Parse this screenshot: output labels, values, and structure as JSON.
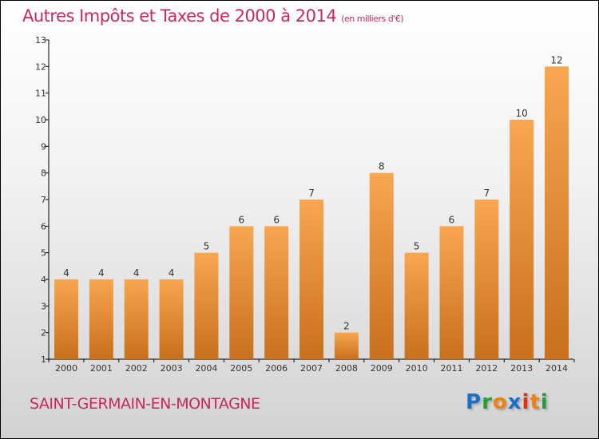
{
  "chart_data": {
    "type": "bar",
    "title": "Autres Impôts et Taxes de 2000 à 2014",
    "unit": "(en milliers d'€)",
    "categories": [
      "2000",
      "2001",
      "2002",
      "2003",
      "2004",
      "2005",
      "2006",
      "2007",
      "2008",
      "2009",
      "2010",
      "2011",
      "2012",
      "2013",
      "2014"
    ],
    "values": [
      4,
      4,
      4,
      4,
      5,
      6,
      6,
      7,
      2,
      8,
      5,
      6,
      7,
      10,
      12
    ],
    "yticks": [
      1,
      2,
      3,
      4,
      5,
      6,
      7,
      8,
      9,
      10,
      11,
      12,
      13
    ],
    "ylim": [
      1,
      13
    ],
    "xlabel": "",
    "ylabel": "",
    "bar_color": "#f0953c"
  },
  "commune": "SAINT-GERMAIN-EN-MONTAGNE",
  "logo": {
    "letters": [
      "P",
      "r",
      "o",
      "x",
      "i",
      "t",
      "i"
    ],
    "colors": [
      "#1a6fc8",
      "#2a9a3a",
      "#f08010",
      "#1a6fc8",
      "#e03010",
      "#f08010",
      "#2a9a3a"
    ]
  }
}
